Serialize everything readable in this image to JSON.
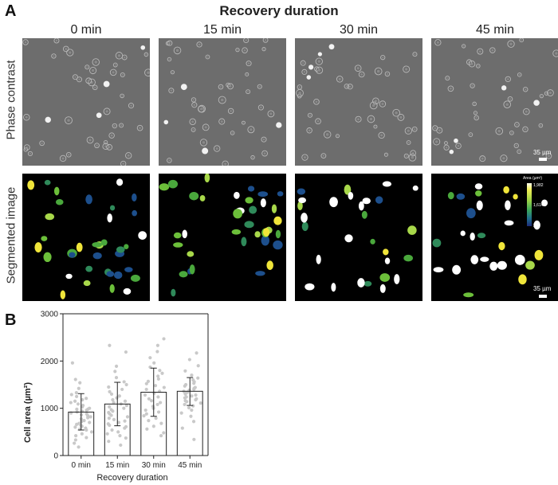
{
  "panel_a": {
    "letter": "A",
    "title": "Recovery duration",
    "columns": [
      "0 min",
      "15 min",
      "30 min",
      "45 min"
    ],
    "rows": [
      "Phase contrast",
      "Segmented image"
    ],
    "scale_bar_label": "35 µm",
    "colorbar": {
      "title": "Area (µm²)",
      "ticks": [
        "1,982",
        "1,614",
        "246"
      ],
      "colors": [
        "#fffff0",
        "#f2ee55",
        "#9bd246",
        "#3ca85a",
        "#1f6e8c",
        "#1d2b7a"
      ]
    },
    "colors": {
      "phase_bg": "#6d6d6d",
      "segmented_bg": "#000000",
      "cell_yellow": "#f0e53a",
      "cell_green": "#6cbf3a",
      "cell_white": "#ffffff",
      "cell_blue": "#1d4f8c"
    }
  },
  "panel_b": {
    "letter": "B",
    "chart_data": {
      "type": "bar",
      "categories": [
        "0 min",
        "15 min",
        "30 min",
        "45 min"
      ],
      "values": [
        920,
        1090,
        1340,
        1360
      ],
      "error_low": [
        540,
        630,
        830,
        1060
      ],
      "error_high": [
        1310,
        1550,
        1850,
        1650
      ],
      "ylim": [
        0,
        3000
      ],
      "yticks": [
        "0",
        "1000",
        "2000",
        "3000"
      ],
      "xlabel": "Recovery duration",
      "ylabel": "Cell area (µm²)",
      "points": [
        [
          980,
          1960,
          1610,
          1540,
          1420,
          1330,
          1290,
          1250,
          1210,
          1180,
          1150,
          1120,
          1090,
          1060,
          1030,
          1000,
          980,
          960,
          940,
          920,
          900,
          880,
          860,
          840,
          820,
          800,
          780,
          760,
          740,
          720,
          700,
          680,
          660,
          640,
          620,
          600,
          580,
          560,
          540,
          500,
          460,
          420,
          380,
          330,
          260,
          180
        ],
        [
          2330,
          2190,
          1890,
          1780,
          1650,
          1560,
          1500,
          1450,
          1400,
          1350,
          1300,
          1260,
          1220,
          1180,
          1150,
          1120,
          1090,
          1060,
          1030,
          1000,
          970,
          940,
          910,
          880,
          850,
          820,
          790,
          760,
          730,
          700,
          670,
          640,
          610,
          580,
          540,
          500,
          460,
          420,
          370,
          300,
          220
        ],
        [
          2470,
          2330,
          2200,
          2070,
          1960,
          1870,
          1800,
          1740,
          1680,
          1620,
          1570,
          1520,
          1480,
          1440,
          1400,
          1360,
          1320,
          1280,
          1240,
          1200,
          1160,
          1120,
          1080,
          1040,
          1000,
          960,
          920,
          880,
          840,
          790,
          740,
          680,
          620,
          560,
          480,
          420
        ],
        [
          2170,
          2030,
          1900,
          1790,
          1700,
          1640,
          1600,
          1560,
          1530,
          1500,
          1470,
          1440,
          1420,
          1400,
          1380,
          1360,
          1340,
          1320,
          1300,
          1280,
          1260,
          1240,
          1220,
          1200,
          1180,
          1160,
          1140,
          1110,
          1080,
          1050,
          1010,
          960,
          900,
          830,
          720,
          580,
          340
        ]
      ]
    }
  }
}
